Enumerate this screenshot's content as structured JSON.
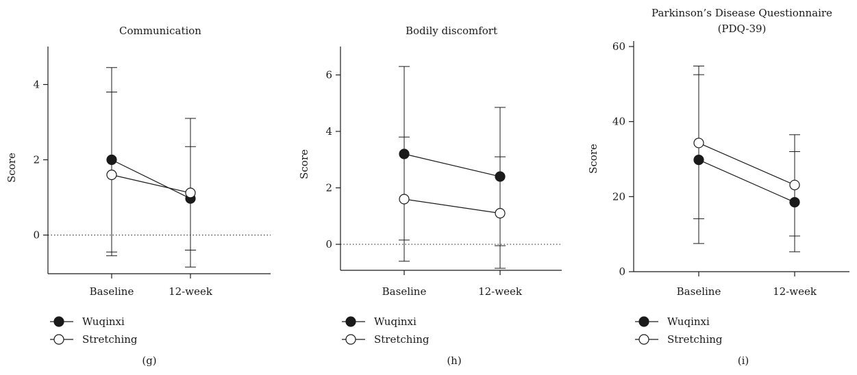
{
  "chart_data": [
    {
      "type": "line",
      "title": [
        "Communication"
      ],
      "panel_label": "(g)",
      "ylabel": "Score",
      "categories": [
        "Baseline",
        "12-week"
      ],
      "ylim": [
        -1,
        5
      ],
      "yticks": [
        0,
        2,
        4
      ],
      "reference_line": 0,
      "series": [
        {
          "name": "Wuqinxi",
          "marker": "filled",
          "values": [
            2.0,
            0.97
          ],
          "upper": [
            4.45,
            2.35
          ],
          "lower": [
            -0.45,
            -0.4
          ]
        },
        {
          "name": "Stretching",
          "marker": "open",
          "values": [
            1.6,
            1.12
          ],
          "upper": [
            3.8,
            3.1
          ],
          "lower": [
            -0.55,
            -0.85
          ]
        }
      ]
    },
    {
      "type": "line",
      "title": [
        "Bodily discomfort"
      ],
      "panel_label": "(h)",
      "ylabel": "Score",
      "categories": [
        "Baseline",
        "12-week"
      ],
      "ylim": [
        -0.9,
        7
      ],
      "yticks": [
        0,
        2,
        4,
        6
      ],
      "reference_line": 0,
      "series": [
        {
          "name": "Wuqinxi",
          "marker": "filled",
          "values": [
            3.2,
            2.4
          ],
          "upper": [
            6.3,
            4.85
          ],
          "lower": [
            0.15,
            -0.05
          ]
        },
        {
          "name": "Stretching",
          "marker": "open",
          "values": [
            1.6,
            1.1
          ],
          "upper": [
            3.8,
            3.1
          ],
          "lower": [
            -0.6,
            -0.85
          ]
        }
      ]
    },
    {
      "type": "line",
      "title": [
        "Parkinson’s Disease Questionnaire",
        "(PDQ-39)"
      ],
      "panel_label": "(i)",
      "ylabel": "Score",
      "categories": [
        "Baseline",
        "12-week"
      ],
      "ylim": [
        0,
        60
      ],
      "yticks": [
        0,
        20,
        40,
        60
      ],
      "reference_line": null,
      "series": [
        {
          "name": "Wuqinxi",
          "marker": "filled",
          "values": [
            29.8,
            18.5
          ],
          "upper": [
            52.5,
            32.0
          ],
          "lower": [
            7.5,
            5.3
          ]
        },
        {
          "name": "Stretching",
          "marker": "open",
          "values": [
            34.3,
            23.1
          ],
          "upper": [
            54.8,
            36.5
          ],
          "lower": [
            14.1,
            9.5
          ]
        }
      ]
    }
  ]
}
